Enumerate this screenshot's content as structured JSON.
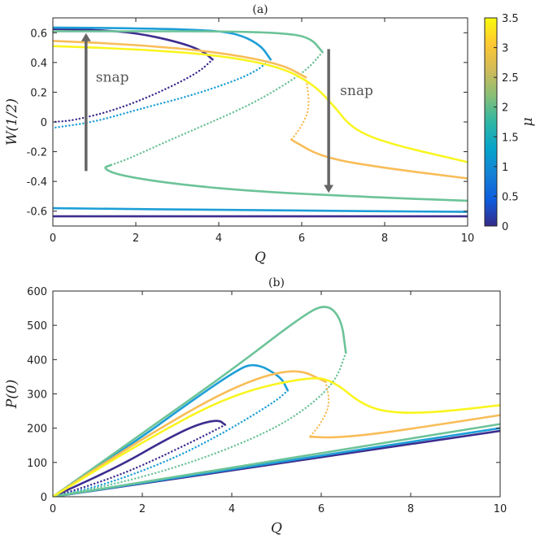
{
  "chart_data": [
    {
      "type": "line",
      "title": "(a)",
      "xlabel": "Q",
      "ylabel": "W(1/2)",
      "xlim": [
        0,
        10
      ],
      "ylim": [
        -0.7,
        0.7
      ],
      "xticks": [
        "0",
        "2",
        "4",
        "6",
        "8",
        "10"
      ],
      "yticks": [
        "-0.6",
        "-0.4",
        "-0.2",
        "0",
        "0.2",
        "0.4",
        "0.6"
      ],
      "grid": false,
      "colorbar": {
        "label": "μ",
        "range": [
          0,
          3.5
        ],
        "ticks": [
          "0",
          "0.5",
          "1",
          "1.5",
          "2",
          "2.5",
          "3",
          "3.5"
        ]
      },
      "annotations": [
        {
          "text": "snap",
          "arrow": "up",
          "x": 0.8,
          "y_from": -0.33,
          "y_to": 0.57
        },
        {
          "text": "snap",
          "arrow": "down",
          "x": 6.65,
          "y_from": 0.49,
          "y_to": -0.45
        }
      ],
      "series": [
        {
          "mu": 0.3,
          "color": "#3e2d8f",
          "upper_stable": {
            "x": [
              0,
              1,
              2,
              3,
              3.6,
              3.85
            ],
            "y": [
              0.625,
              0.62,
              0.6,
              0.54,
              0.48,
              0.42
            ]
          },
          "unstable_dotted": {
            "x": [
              3.85,
              3.5,
              2.5,
              1.5,
              0.5,
              0
            ],
            "y": [
              0.42,
              0.33,
              0.19,
              0.08,
              0.01,
              0.0
            ]
          },
          "lower_stable": {
            "x": [
              0,
              5,
              10
            ],
            "y": [
              -0.635,
              -0.635,
              -0.635
            ]
          }
        },
        {
          "mu": 1.3,
          "color": "#1d9ed7",
          "upper_stable": {
            "x": [
              0,
              2,
              3.5,
              4.4,
              5,
              5.25
            ],
            "y": [
              0.635,
              0.63,
              0.62,
              0.6,
              0.52,
              0.42
            ]
          },
          "unstable_dotted": {
            "x": [
              5.25,
              4.8,
              3.5,
              2,
              1,
              0
            ],
            "y": [
              0.42,
              0.32,
              0.19,
              0.08,
              0.0,
              -0.04
            ]
          },
          "lower_stable": {
            "x": [
              0,
              5,
              10
            ],
            "y": [
              -0.58,
              -0.595,
              -0.605
            ]
          }
        },
        {
          "mu": 2.1,
          "color": "#6cc398",
          "upper_stable": {
            "x": [
              0,
              2,
              4,
              5.5,
              6.2,
              6.5
            ],
            "y": [
              0.61,
              0.61,
              0.61,
              0.6,
              0.57,
              0.47
            ]
          },
          "unstable_dotted": {
            "x": [
              6.5,
              6.1,
              5,
              4,
              3,
              2.2,
              1.8,
              1.4
            ],
            "y": [
              0.47,
              0.34,
              0.15,
              0.02,
              -0.1,
              -0.2,
              -0.25,
              -0.29
            ]
          },
          "lower_stable_from_fold": {
            "x": [
              1.4,
              1.2,
              1.6,
              3,
              5,
              8,
              10
            ],
            "y": [
              -0.29,
              -0.31,
              -0.36,
              -0.42,
              -0.47,
              -0.51,
              -0.53
            ]
          }
        },
        {
          "mu": 2.9,
          "color": "#f8bd58",
          "upper_stable": {
            "x": [
              0,
              2,
              4,
              5.5,
              6.1
            ],
            "y": [
              0.545,
              0.52,
              0.47,
              0.39,
              0.3
            ]
          },
          "unstable_dotted": {
            "x": [
              6.1,
              6.2,
              6.0,
              5.75
            ],
            "y": [
              0.3,
              0.1,
              -0.03,
              -0.12
            ]
          },
          "lower_stable": {
            "x": [
              5.75,
              6.5,
              8,
              10
            ],
            "y": [
              -0.12,
              -0.24,
              -0.31,
              -0.38
            ]
          }
        },
        {
          "mu": 3.5,
          "color": "#f9f51f",
          "stable": {
            "x": [
              0,
              2,
              4,
              5.5,
              6.3,
              6.8,
              7.2,
              8,
              10
            ],
            "y": [
              0.51,
              0.49,
              0.45,
              0.37,
              0.25,
              0.1,
              -0.04,
              -0.14,
              -0.27
            ]
          }
        }
      ]
    },
    {
      "type": "line",
      "title": "(b)",
      "xlabel": "Q",
      "ylabel": "P(0)",
      "xlim": [
        0,
        10
      ],
      "ylim": [
        0,
        600
      ],
      "xticks": [
        "0",
        "2",
        "4",
        "6",
        "8",
        "10"
      ],
      "yticks": [
        "0",
        "100",
        "200",
        "300",
        "400",
        "500",
        "600"
      ],
      "grid": false,
      "series": [
        {
          "mu": 0.3,
          "color": "#3e2d8f",
          "upper_stable": {
            "x": [
              0,
              1.5,
              2.5,
              3.2,
              3.7,
              3.85
            ],
            "y": [
              0,
              90,
              165,
              210,
              225,
              210
            ]
          },
          "unstable_dotted": {
            "x": [
              3.85,
              3.5,
              2,
              1,
              0
            ],
            "y": [
              210,
              185,
              90,
              40,
              0
            ]
          },
          "lower_stable": {
            "x": [
              0,
              10
            ],
            "y": [
              0,
              192
            ]
          }
        },
        {
          "mu": 1.3,
          "color": "#1d9ed7",
          "upper_stable": {
            "x": [
              0,
              2,
              3,
              4,
              4.5,
              5.1,
              5.25
            ],
            "y": [
              0,
              175,
              270,
              360,
              393,
              350,
              310
            ]
          },
          "unstable_dotted": {
            "x": [
              5.25,
              5,
              4,
              3,
              2,
              1,
              0
            ],
            "y": [
              310,
              280,
              200,
              130,
              75,
              30,
              0
            ]
          },
          "lower_stable": {
            "x": [
              0,
              10
            ],
            "y": [
              0,
              200
            ]
          }
        },
        {
          "mu": 2.1,
          "color": "#6cc398",
          "upper_stable": {
            "x": [
              0,
              2,
              4,
              5.5,
              6.1,
              6.45,
              6.55
            ],
            "y": [
              0,
              185,
              370,
              520,
              565,
              520,
              420
            ]
          },
          "unstable_dotted": {
            "x": [
              6.55,
              6.3,
              5.5,
              4.5,
              3,
              1.5,
              0
            ],
            "y": [
              420,
              330,
              240,
              170,
              95,
              40,
              0
            ]
          },
          "lower_stable": {
            "x": [
              0,
              10
            ],
            "y": [
              0,
              212
            ]
          }
        },
        {
          "mu": 2.9,
          "color": "#f8bd58",
          "upper_stable": {
            "x": [
              0,
              2,
              4,
              5.4,
              6.1
            ],
            "y": [
              0,
              170,
              320,
              378,
              335
            ]
          },
          "unstable_dotted": {
            "x": [
              6.1,
              6.2,
              6.0,
              5.75
            ],
            "y": [
              335,
              270,
              215,
              175
            ]
          },
          "lower_stable": {
            "x": [
              5.75,
              6.2,
              7,
              8,
              10
            ],
            "y": [
              175,
              172,
              180,
              198,
              238
            ]
          }
        },
        {
          "mu": 3.5,
          "color": "#f9f51f",
          "stable": {
            "x": [
              0,
              2,
              4,
              5.8,
              6.3,
              6.9,
              7.5,
              8.5,
              10
            ],
            "y": [
              0,
              160,
              300,
              352,
              335,
              270,
              245,
              245,
              267
            ]
          }
        }
      ]
    }
  ]
}
